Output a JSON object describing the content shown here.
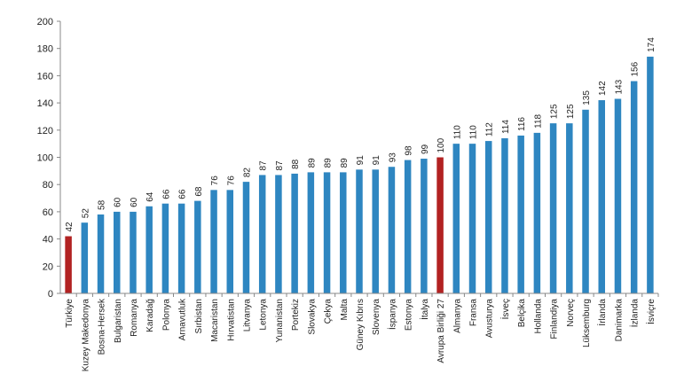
{
  "chart_data": {
    "type": "bar",
    "categories": [
      "Türkiye",
      "Kuzey Makedonya",
      "Bosna-Hersek",
      "Bulgaristan",
      "Romanya",
      "Karadağ",
      "Polonya",
      "Arnavutluk",
      "Sırbistan",
      "Macaristan",
      "Hırvatistan",
      "Litvanya",
      "Letonya",
      "Yunanistan",
      "Portekiz",
      "Slovakya",
      "Çekya",
      "Malta",
      "Güney Kıbrıs",
      "Slovenya",
      "İspanya",
      "Estonya",
      "İtalya",
      "Avrupa Birliği 27",
      "Almanya",
      "Fransa",
      "Avusturya",
      "İsveç",
      "Belçika",
      "Hollanda",
      "Finlandiya",
      "Norveç",
      "Lüksemburg",
      "İrlanda",
      "Danimarka",
      "İzlanda",
      "İsviçre"
    ],
    "values": [
      42,
      52,
      58,
      60,
      60,
      64,
      66,
      66,
      68,
      76,
      76,
      82,
      87,
      87,
      88,
      89,
      89,
      89,
      91,
      91,
      93,
      98,
      99,
      100,
      110,
      110,
      112,
      114,
      116,
      118,
      125,
      125,
      135,
      142,
      143,
      156,
      174
    ],
    "highlight": [
      "Türkiye",
      "Avrupa Birliği 27"
    ],
    "ylim": [
      0,
      200
    ],
    "yticks": [
      0,
      20,
      40,
      60,
      80,
      100,
      120,
      140,
      160,
      180,
      200
    ],
    "title": "",
    "xlabel": "",
    "ylabel": "",
    "colors": {
      "bar": "#2E86C1",
      "highlight": "#B22222",
      "axis": "#888888"
    }
  }
}
